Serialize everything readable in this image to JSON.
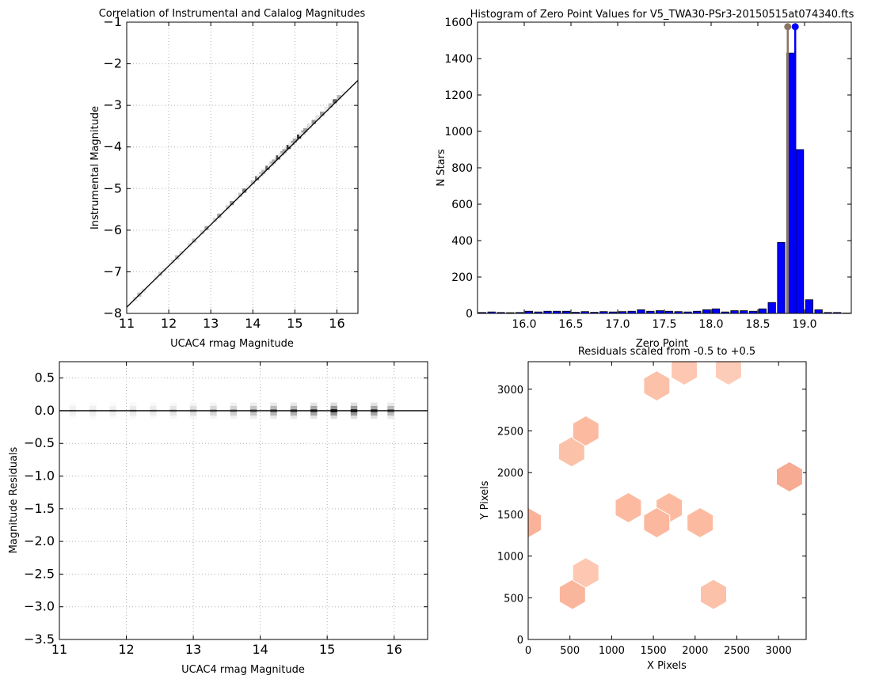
{
  "chart_data": [
    {
      "id": "correlation",
      "type": "heatmap",
      "title": "Correlation of Instrumental and Calalog Magnitudes",
      "xlabel": "UCAC4 rmag Magnitude",
      "ylabel": "Instrumental Magnitude",
      "xlim": [
        11,
        16.5
      ],
      "ylim": [
        -8,
        -1
      ],
      "xticks": [
        "11",
        "12",
        "13",
        "14",
        "15",
        "16"
      ],
      "yticks": [
        "−8",
        "−7",
        "−6",
        "−5",
        "−4",
        "−3",
        "−2",
        "−1"
      ],
      "grid": true,
      "fit_line": {
        "x": [
          11,
          16.5
        ],
        "y": [
          -7.85,
          -2.4
        ]
      },
      "density": [
        {
          "x": 11.3,
          "y": -7.55,
          "w": 0.25
        },
        {
          "x": 11.8,
          "y": -7.05,
          "w": 0.2
        },
        {
          "x": 12.2,
          "y": -6.65,
          "w": 0.25
        },
        {
          "x": 12.6,
          "y": -6.25,
          "w": 0.25
        },
        {
          "x": 12.9,
          "y": -5.95,
          "w": 0.35
        },
        {
          "x": 13.2,
          "y": -5.65,
          "w": 0.35
        },
        {
          "x": 13.5,
          "y": -5.35,
          "w": 0.4
        },
        {
          "x": 13.8,
          "y": -5.05,
          "w": 0.5
        },
        {
          "x": 14.1,
          "y": -4.75,
          "w": 0.55
        },
        {
          "x": 14.35,
          "y": -4.5,
          "w": 0.6
        },
        {
          "x": 14.6,
          "y": -4.25,
          "w": 0.7
        },
        {
          "x": 14.85,
          "y": -4.0,
          "w": 0.75
        },
        {
          "x": 15.1,
          "y": -3.75,
          "w": 0.8
        },
        {
          "x": 15.35,
          "y": -3.5,
          "w": 0.85
        },
        {
          "x": 15.55,
          "y": -3.3,
          "w": 0.9
        },
        {
          "x": 15.75,
          "y": -3.1,
          "w": 0.85
        },
        {
          "x": 15.95,
          "y": -2.9,
          "w": 0.6
        }
      ]
    },
    {
      "id": "zero-point-histogram",
      "type": "bar",
      "title": "Histogram of Zero Point Values for V5_TWA30-PSr3-20150515at074340.fts",
      "xlabel": "Zero Point",
      "ylabel": "N Stars",
      "xlim": [
        15.5,
        19.5
      ],
      "ylim": [
        0,
        1600
      ],
      "xticks": [
        "16.0",
        "16.5",
        "17.0",
        "17.5",
        "18.0",
        "18.5",
        "19.0"
      ],
      "yticks": [
        "0",
        "200",
        "400",
        "600",
        "800",
        "1000",
        "1200",
        "1400",
        "1600"
      ],
      "grid": false,
      "bin_width": 0.1,
      "x": [
        15.55,
        15.65,
        15.75,
        15.85,
        15.95,
        16.05,
        16.15,
        16.25,
        16.35,
        16.45,
        16.55,
        16.65,
        16.75,
        16.85,
        16.95,
        17.05,
        17.15,
        17.25,
        17.35,
        17.45,
        17.55,
        17.65,
        17.75,
        17.85,
        17.95,
        18.05,
        18.15,
        18.25,
        18.35,
        18.45,
        18.55,
        18.65,
        18.75,
        18.85,
        18.95,
        19.05,
        19.15,
        19.25,
        19.35,
        19.45
      ],
      "values": [
        5,
        8,
        5,
        4,
        5,
        12,
        8,
        12,
        12,
        12,
        6,
        10,
        6,
        10,
        8,
        10,
        12,
        20,
        12,
        15,
        12,
        10,
        8,
        12,
        20,
        25,
        8,
        15,
        15,
        12,
        25,
        60,
        390,
        1430,
        900,
        75,
        20,
        5,
        5,
        2
      ],
      "bar_color": "#0000ff",
      "markers": [
        {
          "x": 18.82,
          "y": 1575,
          "color": "#8c7463"
        },
        {
          "x": 18.9,
          "y": 1575,
          "color": "#0000ff"
        }
      ]
    },
    {
      "id": "residuals",
      "type": "heatmap",
      "title": "",
      "xlabel": "UCAC4 rmag Magnitude",
      "ylabel": "Magnitude Residuals",
      "xlim": [
        11,
        16.5
      ],
      "ylim": [
        -3.5,
        0.75
      ],
      "xticks": [
        "11",
        "12",
        "13",
        "14",
        "15",
        "16"
      ],
      "yticks": [
        "−3.5",
        "−3.0",
        "−2.5",
        "−2.0",
        "−1.5",
        "−1.0",
        "−0.5",
        "0.0",
        "0.5"
      ],
      "grid": true,
      "zero_line": 0,
      "density": [
        {
          "x": 11.2,
          "w": 0.1
        },
        {
          "x": 11.5,
          "w": 0.12
        },
        {
          "x": 11.8,
          "w": 0.12
        },
        {
          "x": 12.1,
          "w": 0.15
        },
        {
          "x": 12.4,
          "w": 0.15
        },
        {
          "x": 12.7,
          "w": 0.2
        },
        {
          "x": 13.0,
          "w": 0.25
        },
        {
          "x": 13.3,
          "w": 0.3
        },
        {
          "x": 13.6,
          "w": 0.35
        },
        {
          "x": 13.9,
          "w": 0.45
        },
        {
          "x": 14.2,
          "w": 0.55
        },
        {
          "x": 14.5,
          "w": 0.6
        },
        {
          "x": 14.8,
          "w": 0.7
        },
        {
          "x": 15.1,
          "w": 0.85
        },
        {
          "x": 15.4,
          "w": 0.8
        },
        {
          "x": 15.7,
          "w": 0.7
        },
        {
          "x": 15.95,
          "w": 0.55
        }
      ]
    },
    {
      "id": "spatial-residuals",
      "type": "heatmap",
      "title": "Residuals scaled from -0.5 to +0.5",
      "xlabel": "X Pixels",
      "ylabel": "Y Pixels",
      "xlim": [
        0,
        3330
      ],
      "ylim": [
        0,
        3330
      ],
      "xticks": [
        "0",
        "500",
        "1000",
        "1500",
        "2000",
        "2500",
        "3000"
      ],
      "yticks": [
        "0",
        "500",
        "1000",
        "1500",
        "2000",
        "2500",
        "3000"
      ],
      "grid": false,
      "colormap": [
        "#fff5f0",
        "#fcbba1",
        "#f4a08a"
      ],
      "hexes": [
        {
          "x": 530,
          "y": 540,
          "v": 0.6
        },
        {
          "x": 2220,
          "y": 540,
          "v": 0.45
        },
        {
          "x": 690,
          "y": 800,
          "v": 0.4
        },
        {
          "x": 1200,
          "y": 1580,
          "v": 0.5
        },
        {
          "x": 1690,
          "y": 1580,
          "v": 0.5
        },
        {
          "x": 0,
          "y": 1400,
          "v": 0.65
        },
        {
          "x": 1540,
          "y": 1400,
          "v": 0.55
        },
        {
          "x": 2060,
          "y": 1400,
          "v": 0.5
        },
        {
          "x": 520,
          "y": 2250,
          "v": 0.45
        },
        {
          "x": 3130,
          "y": 1950,
          "v": 0.8
        },
        {
          "x": 690,
          "y": 2500,
          "v": 0.5
        },
        {
          "x": 1540,
          "y": 3040,
          "v": 0.45
        },
        {
          "x": 1870,
          "y": 3230,
          "v": 0.4
        },
        {
          "x": 2400,
          "y": 3230,
          "v": 0.35
        }
      ]
    }
  ]
}
